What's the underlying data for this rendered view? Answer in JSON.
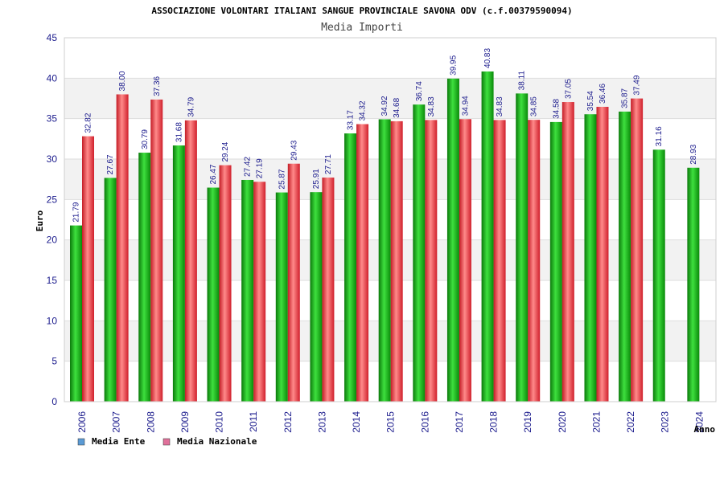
{
  "chart_data": {
    "type": "bar",
    "title": "ASSOCIAZIONE VOLONTARI ITALIANI SANGUE PROVINCIALE SAVONA ODV (c.f.00379590094)",
    "subtitle": "Media Importi",
    "xlabel": "Anno",
    "ylabel": "Euro",
    "ylim": [
      0,
      45
    ],
    "yticks": [
      0,
      5,
      10,
      15,
      20,
      25,
      30,
      35,
      40,
      45
    ],
    "grid": true,
    "legend_position": "bottom-left",
    "categories": [
      "2006",
      "2007",
      "2008",
      "2009",
      "2010",
      "2011",
      "2012",
      "2013",
      "2014",
      "2015",
      "2016",
      "2017",
      "2018",
      "2019",
      "2020",
      "2021",
      "2022",
      "2023",
      "2024"
    ],
    "series": [
      {
        "name": "Media Ente",
        "color": "#1ab21a",
        "legend_color": "#5b9bd5",
        "values": [
          21.79,
          27.67,
          30.79,
          31.68,
          26.47,
          27.42,
          25.87,
          25.91,
          33.17,
          34.92,
          36.74,
          39.95,
          40.83,
          38.11,
          34.58,
          35.54,
          35.87,
          31.16,
          28.93
        ],
        "labels": [
          "21.79",
          "27.67",
          "30.79",
          "31.68",
          "26.47",
          "27.42",
          "25.87",
          "25.91",
          "33.17",
          "34.92",
          "36.74",
          "39.95",
          "40.83",
          "38.11",
          "34.58",
          "35.54",
          "35.87",
          "31.16",
          "28.93"
        ]
      },
      {
        "name": "Media Nazionale",
        "color": "#e0303a",
        "legend_color": "#e0709a",
        "values": [
          32.82,
          38.0,
          37.36,
          34.79,
          29.24,
          27.19,
          29.43,
          27.71,
          34.32,
          34.68,
          34.83,
          34.94,
          34.83,
          34.85,
          37.05,
          36.46,
          37.49,
          null,
          null
        ],
        "labels": [
          "32.82",
          "38.00",
          "37.36",
          "34.79",
          "29.24",
          "27.19",
          "29.43",
          "27.71",
          "34.32",
          "34.68",
          "34.83",
          "34.94",
          "34.83",
          "34.85",
          "37.05",
          "36.46",
          "37.49",
          "",
          ""
        ]
      }
    ]
  }
}
